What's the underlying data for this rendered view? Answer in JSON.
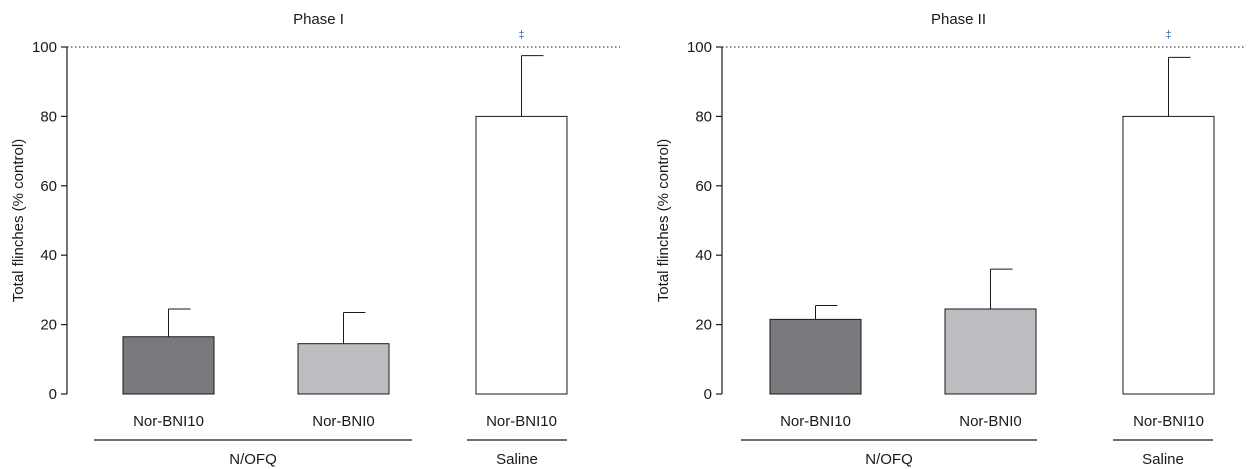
{
  "colors": {
    "bar_dark": "#7a7a7e",
    "bar_light": "#bdbdc1",
    "bar_white": "#ffffff",
    "stroke": "#1a1a1a",
    "significance": "#2d6db5"
  },
  "chart_data": [
    {
      "type": "bar",
      "title": "Phase I",
      "ylabel": "Total flinches (% control)",
      "xlabel": "",
      "ylim": [
        0,
        100
      ],
      "yticks": [
        0,
        20,
        40,
        60,
        80,
        100
      ],
      "reference_line": 100,
      "categories": [
        "Nor-BNI10",
        "Nor-BNI0",
        "Nor-BNI10"
      ],
      "groups": [
        {
          "label": "N/OFQ",
          "categories": [
            0,
            1
          ]
        },
        {
          "label": "Saline",
          "categories": [
            2
          ]
        }
      ],
      "values": [
        16.5,
        14.5,
        80
      ],
      "errors": [
        8.0,
        9.0,
        17.5
      ],
      "fills": [
        "bar_dark",
        "bar_light",
        "bar_white"
      ],
      "significance": [
        "",
        "",
        "‡"
      ]
    },
    {
      "type": "bar",
      "title": "Phase II",
      "ylabel": "Total flinches (% control)",
      "xlabel": "",
      "ylim": [
        0,
        100
      ],
      "yticks": [
        0,
        20,
        40,
        60,
        80,
        100
      ],
      "reference_line": 100,
      "categories": [
        "Nor-BNI10",
        "Nor-BNI0",
        "Nor-BNI10"
      ],
      "groups": [
        {
          "label": "N/OFQ",
          "categories": [
            0,
            1
          ]
        },
        {
          "label": "Saline",
          "categories": [
            2
          ]
        }
      ],
      "values": [
        21.5,
        24.5,
        80
      ],
      "errors": [
        4.0,
        11.5,
        17.0
      ],
      "fills": [
        "bar_dark",
        "bar_light",
        "bar_white"
      ],
      "significance": [
        "",
        "",
        "‡"
      ]
    }
  ]
}
